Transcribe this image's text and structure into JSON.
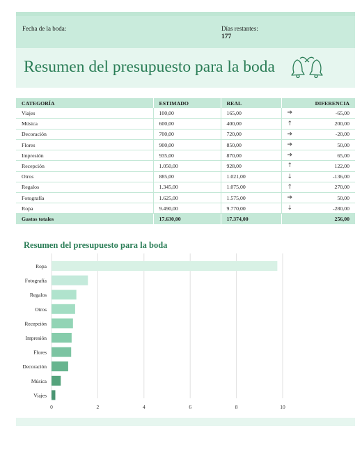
{
  "header": {
    "wedding_date_label": "Fecha de la boda:",
    "days_left_label": "Días restantes:",
    "days_left_value": "177"
  },
  "title": "Resumen del presupuesto para la boda",
  "icon": "wedding-bells-icon",
  "table": {
    "columns": [
      "CATEGORÍA",
      "ESTIMADO",
      "REAL",
      "DIFERENCIA"
    ],
    "rows": [
      {
        "category": "Viajes",
        "estimated": "100,00",
        "actual": "165,00",
        "trend": "right",
        "difference": "-65,00"
      },
      {
        "category": "Música",
        "estimated": "600,00",
        "actual": "400,00",
        "trend": "up",
        "difference": "200,00"
      },
      {
        "category": "Decoración",
        "estimated": "700,00",
        "actual": "720,00",
        "trend": "right",
        "difference": "-20,00"
      },
      {
        "category": "Flores",
        "estimated": "900,00",
        "actual": "850,00",
        "trend": "right",
        "difference": "50,00"
      },
      {
        "category": "Impresión",
        "estimated": "935,00",
        "actual": "870,00",
        "trend": "right",
        "difference": "65,00"
      },
      {
        "category": "Recepción",
        "estimated": "1.050,00",
        "actual": "928,00",
        "trend": "up",
        "difference": "122,00"
      },
      {
        "category": "Otros",
        "estimated": "885,00",
        "actual": "1.021,00",
        "trend": "down",
        "difference": "-136,00"
      },
      {
        "category": "Regalos",
        "estimated": "1.345,00",
        "actual": "1.075,00",
        "trend": "up",
        "difference": "270,00"
      },
      {
        "category": "Fotografía",
        "estimated": "1.625,00",
        "actual": "1.575,00",
        "trend": "right",
        "difference": "50,00"
      },
      {
        "category": "Ropa",
        "estimated": "9.490,00",
        "actual": "9.770,00",
        "trend": "down",
        "difference": "-280,00"
      }
    ],
    "total": {
      "label": "Gastos totales",
      "estimated": "17.630,00",
      "actual": "17.374,00",
      "difference": "256,00"
    }
  },
  "chart_title": "Resumen del presupuesto para la boda",
  "chart_data": {
    "type": "bar",
    "orientation": "horizontal",
    "title": "Resumen del presupuesto para la boda",
    "xlabel": "",
    "ylabel": "",
    "categories": [
      "Ropa",
      "Fotografía",
      "Regalos",
      "Otros",
      "Recepción",
      "Impresión",
      "Flores",
      "Decoración",
      "Música",
      "Viajes"
    ],
    "values": [
      9.77,
      1.575,
      1.075,
      1.021,
      0.928,
      0.87,
      0.85,
      0.72,
      0.4,
      0.165
    ],
    "xlim": [
      0,
      10
    ],
    "xticks": [
      0,
      2,
      4,
      6,
      8,
      10
    ],
    "grid": true,
    "colors": [
      "#d8f1e5",
      "#c4eadb",
      "#b0e3cd",
      "#a3ddc3",
      "#92d4b5",
      "#86ccab",
      "#7cc4a2",
      "#68b58f",
      "#55a37c",
      "#4a9572"
    ]
  }
}
